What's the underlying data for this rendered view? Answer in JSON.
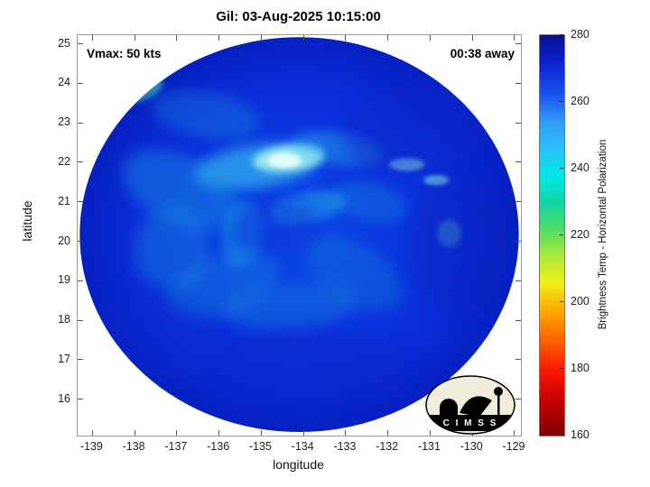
{
  "title": "Gil: 03-Aug-2025 10:15:00",
  "annotations": {
    "vmax": "Vmax: 50 kts",
    "eta": "00:38 away"
  },
  "logo": {
    "text": "C I M S S"
  },
  "chart_data": {
    "type": "heatmap",
    "title": "Gil: 03-Aug-2025 10:15:00",
    "xlabel": "longitude",
    "ylabel": "latitude",
    "xlim": [
      -139.35,
      -128.85
    ],
    "ylim": [
      15.08,
      25.22
    ],
    "x_ticks": [
      -139,
      -138,
      -137,
      -136,
      -135,
      -134,
      -133,
      -132,
      -131,
      -130,
      -129
    ],
    "y_ticks": [
      16,
      17,
      18,
      19,
      20,
      21,
      22,
      23,
      24,
      25
    ],
    "grid": false,
    "colorbar": {
      "label": "Brightness Temp - Horizontal Polarization",
      "range": [
        160,
        280
      ],
      "ticks": [
        160,
        180,
        200,
        220,
        240,
        260,
        280
      ],
      "colormap": "jet",
      "stops": [
        {
          "v": 160,
          "color": "#7d0000"
        },
        {
          "v": 170,
          "color": "#c00000"
        },
        {
          "v": 179,
          "color": "#f81500"
        },
        {
          "v": 189,
          "color": "#ff6400"
        },
        {
          "v": 198,
          "color": "#ffae00"
        },
        {
          "v": 206,
          "color": "#f2ef1a"
        },
        {
          "v": 214,
          "color": "#a8ea3c"
        },
        {
          "v": 222,
          "color": "#4ddd63"
        },
        {
          "v": 230,
          "color": "#12d5a6"
        },
        {
          "v": 238,
          "color": "#00e8e8"
        },
        {
          "v": 246,
          "color": "#2cc0fa"
        },
        {
          "v": 254,
          "color": "#2f9cf5"
        },
        {
          "v": 262,
          "color": "#1a55f0"
        },
        {
          "v": 271,
          "color": "#0b24d4"
        },
        {
          "v": 280,
          "color": "#050e8f"
        }
      ]
    },
    "disk": {
      "description": "Circular microwave-imager swath of tropical storm Gil; brightness temps mostly 250-270 K (blues) with convective cyan bands 235-245 K, brightest warm-cloud patch near 22.1N 134.4W, darker ~270-278 K regions on NE and SE flanks",
      "center_lon": -134.1,
      "center_lat": 20.17,
      "radius_lon_deg": 5.2,
      "radius_lat_deg": 5.0,
      "gradient": [
        {
          "offset": "0%",
          "color": "#0d47e6"
        },
        {
          "offset": "40%",
          "color": "#0a38e0"
        },
        {
          "offset": "75%",
          "color": "#0a2cd8"
        },
        {
          "offset": "100%",
          "color": "#0620c0"
        }
      ],
      "features": [
        {
          "lon": -135.1,
          "lat": 21.9,
          "rx": 1.5,
          "ry": 0.55,
          "rot": -8,
          "color": "#3ecdef",
          "opacity": 0.6,
          "blur": 7
        },
        {
          "lon": -134.35,
          "lat": 22.1,
          "rx": 0.85,
          "ry": 0.33,
          "rot": -6,
          "color": "#aef4f2",
          "opacity": 0.85,
          "blur": 4
        },
        {
          "lon": -134.45,
          "lat": 22.05,
          "rx": 0.4,
          "ry": 0.18,
          "rot": 0,
          "color": "#e8fffb",
          "opacity": 0.9,
          "blur": 2
        },
        {
          "lon": -133.2,
          "lat": 22.35,
          "rx": 1.1,
          "ry": 0.4,
          "rot": 8,
          "color": "#2fb4e8",
          "opacity": 0.45,
          "blur": 6
        },
        {
          "lon": -136.9,
          "lat": 21.3,
          "rx": 1.5,
          "ry": 0.85,
          "rot": 25,
          "color": "#1f9de2",
          "opacity": 0.4,
          "blur": 8
        },
        {
          "lon": -137.1,
          "lat": 19.8,
          "rx": 0.9,
          "ry": 1.1,
          "rot": 0,
          "color": "#1f9de2",
          "opacity": 0.33,
          "blur": 8
        },
        {
          "lon": -135.9,
          "lat": 18.9,
          "rx": 1.4,
          "ry": 0.75,
          "rot": -20,
          "color": "#1a95de",
          "opacity": 0.35,
          "blur": 8
        },
        {
          "lon": -134.3,
          "lat": 18.35,
          "rx": 1.6,
          "ry": 0.6,
          "rot": -5,
          "color": "#1a95de",
          "opacity": 0.33,
          "blur": 8
        },
        {
          "lon": -132.8,
          "lat": 19.2,
          "rx": 1.3,
          "ry": 0.75,
          "rot": 30,
          "color": "#178cd8",
          "opacity": 0.3,
          "blur": 8
        },
        {
          "lon": -133.9,
          "lat": 20.85,
          "rx": 0.95,
          "ry": 0.38,
          "rot": -12,
          "color": "#25b2e8",
          "opacity": 0.5,
          "blur": 5
        },
        {
          "lon": -135.45,
          "lat": 20.2,
          "rx": 0.5,
          "ry": 0.85,
          "rot": 10,
          "color": "#1fa8e4",
          "opacity": 0.4,
          "blur": 5
        },
        {
          "lon": -137.85,
          "lat": 23.85,
          "rx": 0.55,
          "ry": 0.28,
          "rot": -20,
          "color": "#49e0b8",
          "opacity": 0.55,
          "blur": 3
        },
        {
          "lon": -131.55,
          "lat": 21.95,
          "rx": 0.42,
          "ry": 0.16,
          "rot": 0,
          "color": "#96f0ee",
          "opacity": 0.75,
          "blur": 2
        },
        {
          "lon": -130.85,
          "lat": 21.55,
          "rx": 0.3,
          "ry": 0.13,
          "rot": 0,
          "color": "#86ecea",
          "opacity": 0.65,
          "blur": 2
        },
        {
          "lon": -130.55,
          "lat": 20.2,
          "rx": 0.28,
          "ry": 0.35,
          "rot": 0,
          "color": "#5fe2d8",
          "opacity": 0.45,
          "blur": 3
        },
        {
          "lon": -131.2,
          "lat": 22.9,
          "rx": 1.9,
          "ry": 1.15,
          "rot": -15,
          "color": "#0a28c8",
          "opacity": 0.5,
          "blur": 10
        },
        {
          "lon": -130.3,
          "lat": 19.9,
          "rx": 1.2,
          "ry": 1.7,
          "rot": 0,
          "color": "#0922ba",
          "opacity": 0.45,
          "blur": 10
        },
        {
          "lon": -133.8,
          "lat": 16.9,
          "rx": 2.3,
          "ry": 0.85,
          "rot": 5,
          "color": "#0a26c2",
          "opacity": 0.42,
          "blur": 10
        },
        {
          "lon": -137.4,
          "lat": 17.6,
          "rx": 1.5,
          "ry": 1.0,
          "rot": 20,
          "color": "#0b2ccd",
          "opacity": 0.38,
          "blur": 10
        },
        {
          "lon": -134.6,
          "lat": 20.35,
          "rx": 1.05,
          "ry": 0.7,
          "rot": 0,
          "color": "#0a30d4",
          "opacity": 0.45,
          "blur": 8
        },
        {
          "lon": -132.4,
          "lat": 21.0,
          "rx": 0.9,
          "ry": 0.5,
          "rot": 15,
          "color": "#1b9ade",
          "opacity": 0.28,
          "blur": 6
        },
        {
          "lon": -136.3,
          "lat": 23.2,
          "rx": 1.3,
          "ry": 0.6,
          "rot": 10,
          "color": "#1f9de2",
          "opacity": 0.3,
          "blur": 7
        }
      ]
    }
  }
}
